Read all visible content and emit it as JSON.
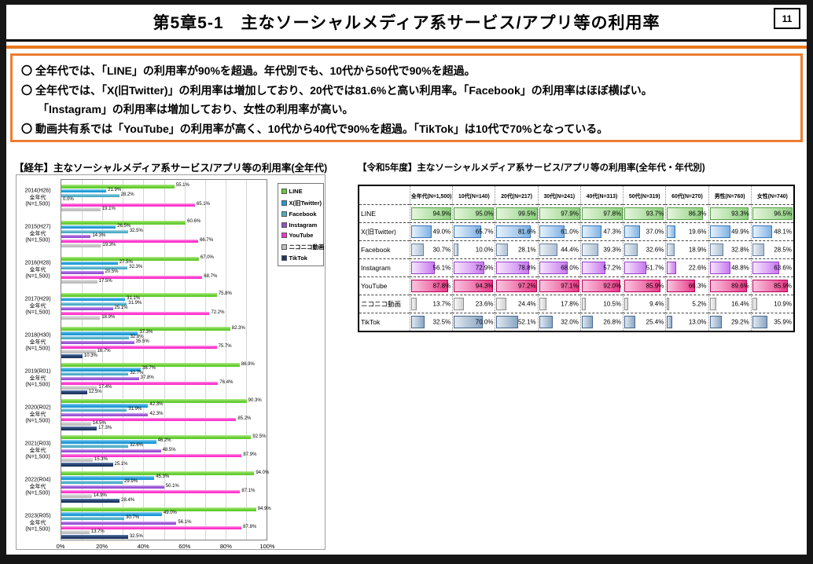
{
  "header": {
    "title": "第5章5-1　主なソーシャルメディア系サービス/アプリ等の利用率",
    "page_number": "11"
  },
  "summary": {
    "lines": [
      {
        "marker": "〇",
        "indent": false,
        "text": "全年代では、「LINE」の利用率が90%を超過。年代別でも、10代から50代で90%を超過。"
      },
      {
        "marker": "〇",
        "indent": false,
        "text": "全年代では、「X(旧Twitter)」の利用率は増加しており、20代では81.6%と高い利用率。「Facebook」の利用率はほぼ横ばい。"
      },
      {
        "marker": "",
        "indent": true,
        "text": "「Instagram」の利用率は増加しており、女性の利用率が高い。"
      },
      {
        "marker": "〇",
        "indent": false,
        "text": "動画共有系では「YouTube」の利用率が高く、10代から40代で90%を超過。「TikTok」は10代で70%となっている。"
      }
    ]
  },
  "chart_data": [
    {
      "type": "bar",
      "orientation": "horizontal",
      "title": "【経年】主なソーシャルメディア系サービス/アプリ等の利用率(全年代)",
      "categories": [
        [
          "2014(H26)",
          "全年代",
          "(N=1,500)"
        ],
        [
          "2015(H27)",
          "全年代",
          "(N=1,500)"
        ],
        [
          "2016(H28)",
          "全年代",
          "(N=1,500)"
        ],
        [
          "2017(H29)",
          "全年代",
          "(N=1,500)"
        ],
        [
          "2018(H30)",
          "全年代",
          "(N=1,500)"
        ],
        [
          "2019(R01)",
          "全年代",
          "(N=1,500)"
        ],
        [
          "2020(R02)",
          "全年代",
          "(N=1,500)"
        ],
        [
          "2021(R03)",
          "全年代",
          "(N=1,500)"
        ],
        [
          "2022(R04)",
          "全年代",
          "(N=1,500)"
        ],
        [
          "2023(R05)",
          "全年代",
          "(N=1,500)"
        ]
      ],
      "xlim": [
        0,
        100
      ],
      "xticks": [
        "0%",
        "20%",
        "40%",
        "60%",
        "80%",
        "100%"
      ],
      "grid": true,
      "legend_position": "right",
      "series": [
        {
          "name": "LINE",
          "color": "#66CC33",
          "color_light": "#B4EC8C",
          "values": [
            55.1,
            60.6,
            67.0,
            75.8,
            82.3,
            86.9,
            90.3,
            92.5,
            94.0,
            94.9
          ]
        },
        {
          "name": "X(旧Twitter)",
          "color": "#1F9AD7",
          "color_light": "#8ED0F0",
          "values": [
            21.9,
            26.5,
            27.5,
            31.1,
            37.3,
            38.7,
            42.3,
            46.2,
            45.3,
            49.0
          ]
        },
        {
          "name": "Facebook",
          "color": "#4BACC6",
          "color_light": "#A8D8E8",
          "values": [
            28.2,
            32.5,
            32.3,
            31.9,
            32.8,
            32.7,
            31.9,
            32.6,
            29.9,
            30.7
          ]
        },
        {
          "name": "Instagram",
          "color": "#9650D2",
          "color_light": "#CCA3F0",
          "values": [
            0.0,
            14.3,
            20.5,
            25.1,
            35.5,
            37.8,
            42.3,
            48.5,
            50.1,
            56.1
          ]
        },
        {
          "name": "YouTube",
          "color": "#FF33CC",
          "color_light": "#FF9BE6",
          "values": [
            65.1,
            66.7,
            68.7,
            72.2,
            75.7,
            76.4,
            85.2,
            87.9,
            87.1,
            87.8
          ]
        },
        {
          "name": "ニコニコ動画",
          "color": "#BFBFBF",
          "color_light": "#E8E8E8",
          "values": [
            19.1,
            19.3,
            17.5,
            18.9,
            16.7,
            17.4,
            14.5,
            15.3,
            14.9,
            13.7
          ]
        },
        {
          "name": "TikTok",
          "color": "#1F3864",
          "color_light": "#5A7AB0",
          "values": [
            null,
            null,
            null,
            null,
            10.3,
            12.5,
            17.3,
            25.1,
            28.4,
            32.5
          ]
        }
      ]
    },
    {
      "type": "table",
      "title": "【令和5年度】主なソーシャルメディア系サービス/アプリ等の利用率(全年代・年代別)",
      "columns": [
        "全年代(N=1,500)",
        "10代(N=140)",
        "20代(N=217)",
        "30代(N=241)",
        "40代(N=313)",
        "50代(N=319)",
        "60代(N=270)",
        "男性(N=760)",
        "女性(N=740)"
      ],
      "rows": [
        {
          "label": "LINE",
          "bar_light": "#E4F5DC",
          "bar_color": "#8FD080",
          "bar_border": "#55A046",
          "values": [
            94.9,
            95.0,
            99.5,
            97.9,
            97.8,
            93.7,
            86.3,
            93.3,
            96.5
          ]
        },
        {
          "label": "X(旧Twitter)",
          "bar_light": "#E8F2FC",
          "bar_color": "#7FB2E4",
          "bar_border": "#3A76B4",
          "values": [
            49.0,
            65.7,
            81.6,
            61.0,
            47.3,
            37.0,
            19.6,
            49.9,
            48.1
          ]
        },
        {
          "label": "Facebook",
          "bar_light": "#EDF1F6",
          "bar_color": "#ADC0D4",
          "bar_border": "#6A8098",
          "values": [
            30.7,
            10.0,
            28.1,
            44.4,
            39.3,
            32.6,
            18.9,
            32.8,
            28.5
          ]
        },
        {
          "label": "Instagram",
          "bar_light": "#F6E6FC",
          "bar_color": "#C879F0",
          "bar_border": "#9540C8",
          "values": [
            56.1,
            72.9,
            78.8,
            68.0,
            57.2,
            51.7,
            22.6,
            48.8,
            63.6
          ]
        },
        {
          "label": "YouTube",
          "bar_light": "#FAC4E0",
          "bar_color": "#E83A86",
          "bar_border": "#B80058",
          "values": [
            87.8,
            94.3,
            97.2,
            97.1,
            92.0,
            85.9,
            66.3,
            89.6,
            85.9
          ]
        },
        {
          "label": "ニコニコ動画",
          "bar_light": "#F8F8F8",
          "bar_color": "#D0D0D0",
          "bar_border": "#909090",
          "values": [
            13.7,
            23.6,
            24.4,
            17.8,
            10.5,
            9.4,
            5.2,
            16.4,
            10.9
          ]
        },
        {
          "label": "TikTok",
          "bar_light": "#E0E8F0",
          "bar_color": "#8AA6C4",
          "bar_border": "#4A688C",
          "values": [
            32.5,
            70.0,
            52.1,
            32.0,
            26.8,
            25.4,
            13.0,
            29.2,
            35.9
          ]
        }
      ]
    }
  ]
}
